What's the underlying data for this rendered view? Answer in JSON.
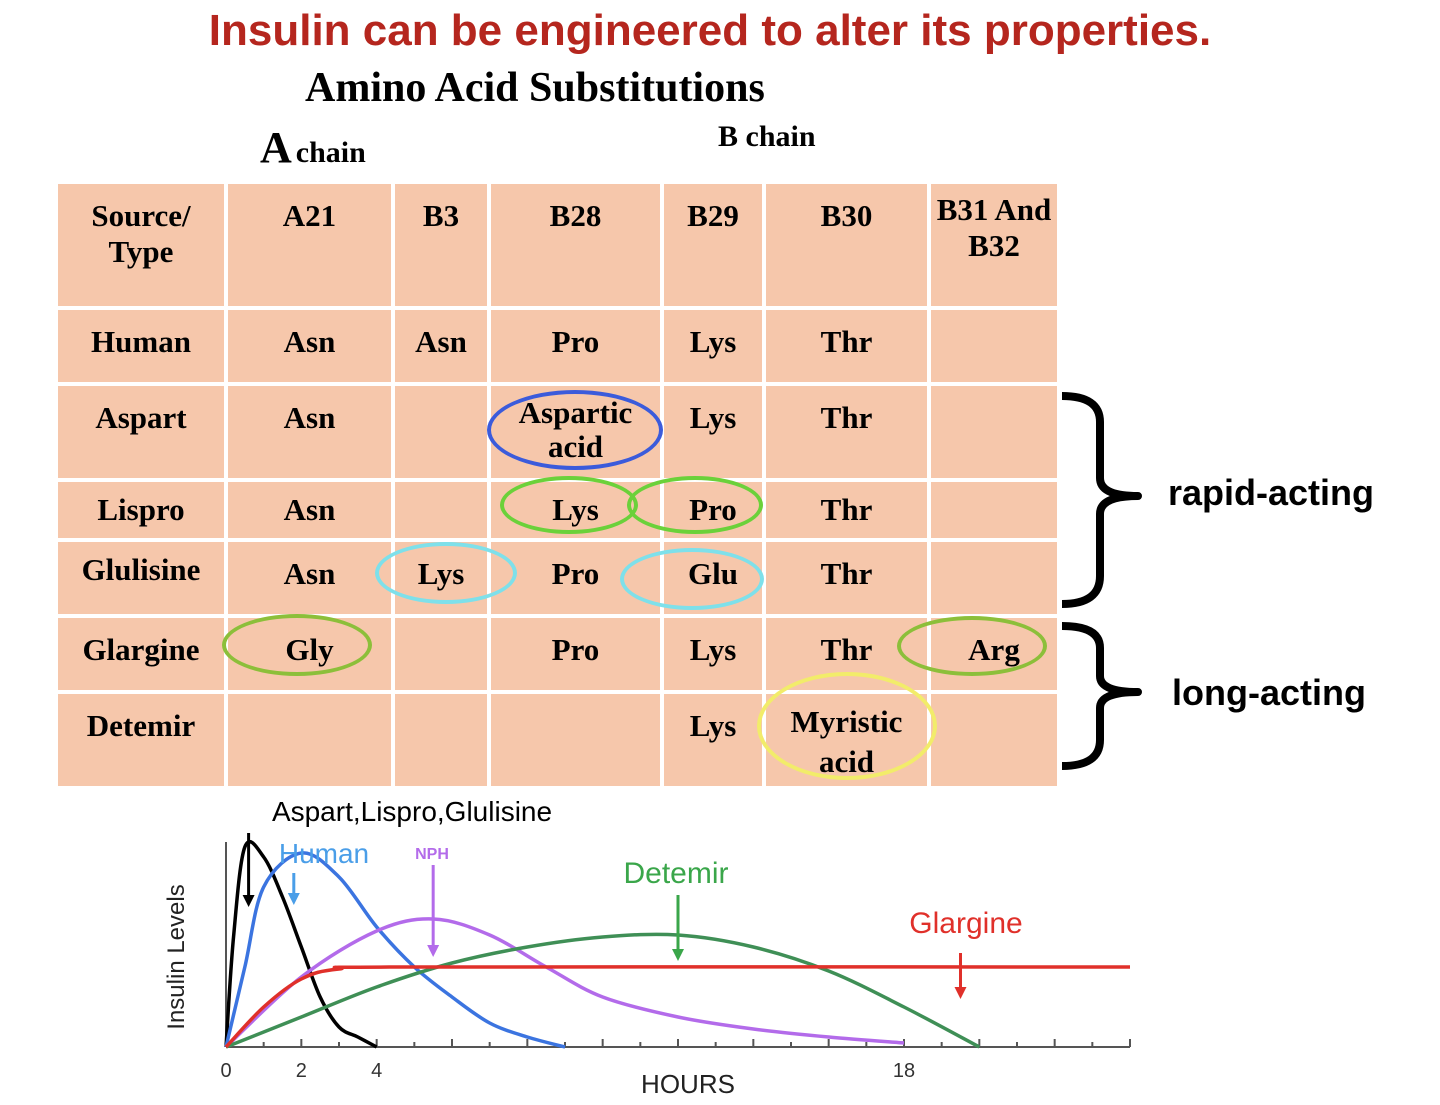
{
  "title": "Insulin can be engineered to alter its properties.",
  "subtitle": "Amino Acid Substitutions",
  "chain_a_big": "A",
  "chain_a_small": "chain",
  "chain_b": "B chain",
  "table": {
    "headers": [
      "Source/ Type",
      "A21",
      "B3",
      "B28",
      "B29",
      "B30",
      "B31 And B32"
    ],
    "rows": [
      [
        "Human",
        "Asn",
        "Asn",
        "Pro",
        "Lys",
        "Thr",
        ""
      ],
      [
        "Aspart",
        "Asn",
        "",
        "Aspartic acid",
        "Lys",
        "Thr",
        ""
      ],
      [
        "Lispro",
        "Asn",
        "",
        "Lys",
        "Pro",
        "Thr",
        ""
      ],
      [
        "Glulisine",
        "Asn",
        "Lys",
        "Pro",
        "Glu",
        "Thr",
        ""
      ],
      [
        "Glargine",
        "Gly",
        "",
        "Pro",
        "Lys",
        "Thr",
        "Arg"
      ],
      [
        "Detemir",
        "",
        "",
        "",
        "Lys",
        "Myristic acid",
        ""
      ]
    ]
  },
  "highlight_colors": {
    "aspart": "#3b5bdb",
    "lispro": "#6bd13a",
    "glulisine": "#7ee0ea",
    "glargine": "#8cbf3a",
    "detemir": "#f2ec6a"
  },
  "groups": {
    "rapid": "rapid-acting",
    "long": "long-acting"
  },
  "chart_data": {
    "type": "line",
    "title": "",
    "xlabel": "HOURS",
    "ylabel": "Insulin Levels",
    "xlim": [
      0,
      24
    ],
    "x_ticks": [
      "0",
      "2",
      "4",
      "18"
    ],
    "annotations": [
      {
        "text": "Aspart,Lispro,Glulisine",
        "color": "#000000",
        "x": 0.6
      },
      {
        "text": "Human",
        "color": "#4a9ee8",
        "x": 1.8
      },
      {
        "text": "NPH",
        "color": "#b36bea",
        "x": 5.5
      },
      {
        "text": "Detemir",
        "color": "#3aa64a",
        "x": 12
      },
      {
        "text": "Glargine",
        "color": "#e0302a",
        "x": 19.5
      }
    ],
    "series": [
      {
        "name": "Aspart,Lispro,Glulisine",
        "color": "#000000",
        "x": [
          0,
          0.2,
          0.5,
          1.0,
          1.5,
          2.0,
          2.5,
          3.0,
          3.5,
          4.0
        ],
        "y": [
          0,
          0.55,
          1.0,
          0.95,
          0.75,
          0.5,
          0.25,
          0.1,
          0.05,
          0
        ]
      },
      {
        "name": "Human",
        "color": "#3b74e0",
        "x": [
          0,
          0.5,
          1.0,
          2.0,
          3.0,
          4.0,
          5.0,
          6.0,
          7.0,
          8.0,
          9.0
        ],
        "y": [
          0,
          0.4,
          0.8,
          0.97,
          0.85,
          0.6,
          0.4,
          0.25,
          0.12,
          0.05,
          0
        ]
      },
      {
        "name": "NPH",
        "color": "#b36bea",
        "x": [
          0,
          2,
          4,
          5.5,
          7,
          8.5,
          10,
          12,
          14,
          16,
          18
        ],
        "y": [
          0,
          0.35,
          0.58,
          0.64,
          0.56,
          0.4,
          0.25,
          0.15,
          0.09,
          0.05,
          0.02
        ]
      },
      {
        "name": "Detemir",
        "color": "#3f8f56",
        "x": [
          0,
          2,
          4,
          6,
          8,
          10,
          12,
          14,
          16,
          18,
          20
        ],
        "y": [
          0,
          0.15,
          0.3,
          0.42,
          0.5,
          0.55,
          0.56,
          0.5,
          0.38,
          0.2,
          0
        ]
      },
      {
        "name": "Glargine",
        "color": "#e0302a",
        "x": [
          0,
          1,
          2,
          3,
          5,
          24
        ],
        "y": [
          0,
          0.2,
          0.34,
          0.39,
          0.4,
          0.4
        ]
      }
    ]
  }
}
